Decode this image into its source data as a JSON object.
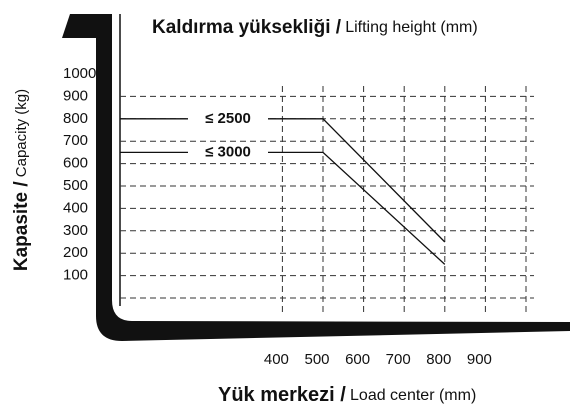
{
  "chart_data": {
    "type": "line",
    "title_bold": "Kaldırma yüksekliği /",
    "title_rest": "Lifting height (mm)",
    "x_label_bold": "Yük merkezi /",
    "x_label_rest": "Load center (mm)",
    "y_label_bold": "Kapasite /",
    "y_label_rest": "Capacity (kg)",
    "xlim": [
      0,
      1000
    ],
    "xticks": [
      400,
      500,
      600,
      700,
      800,
      900
    ],
    "ylim": [
      0,
      1000
    ],
    "yticks": [
      100,
      200,
      300,
      400,
      500,
      600,
      700,
      800,
      900,
      1000
    ],
    "grid": true,
    "series": [
      {
        "name": "≤ 2500",
        "color": "#111111",
        "x": [
          0,
          500,
          800
        ],
        "values": [
          800,
          800,
          250
        ]
      },
      {
        "name": "≤ 3000",
        "color": "#111111",
        "x": [
          0,
          500,
          800
        ],
        "values": [
          650,
          650,
          150
        ]
      }
    ]
  }
}
